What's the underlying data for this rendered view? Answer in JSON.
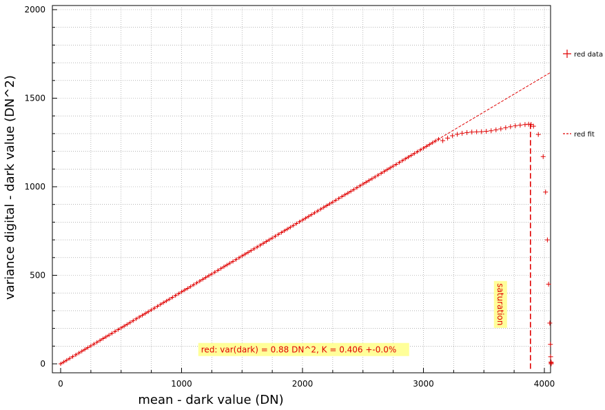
{
  "chart_data": {
    "type": "scatter",
    "title": "",
    "xlabel": "mean - dark value (DN)",
    "ylabel": "variance digital - dark value (DN^2)",
    "xlim": [
      -50,
      4100
    ],
    "ylim": [
      -20,
      2010
    ],
    "x_ticks": [
      0,
      1000,
      2000,
      3000,
      4000
    ],
    "y_ticks": [
      0,
      500,
      1000,
      1500,
      2000
    ],
    "grid": true,
    "legend_position": "right",
    "colors": {
      "series": "#e00000",
      "annotation_bg": "#ffff99",
      "grid": "#888888"
    },
    "series": [
      {
        "name": "red data",
        "marker": "+",
        "linear_region": {
          "x_start": 0,
          "x_end": 3140,
          "slope": 0.406,
          "step": 25
        },
        "points": [
          [
            3160,
            1260
          ],
          [
            3200,
            1275
          ],
          [
            3240,
            1288
          ],
          [
            3280,
            1296
          ],
          [
            3320,
            1302
          ],
          [
            3360,
            1306
          ],
          [
            3400,
            1309
          ],
          [
            3440,
            1310
          ],
          [
            3480,
            1311
          ],
          [
            3520,
            1313
          ],
          [
            3560,
            1316
          ],
          [
            3600,
            1321
          ],
          [
            3640,
            1327
          ],
          [
            3680,
            1333
          ],
          [
            3720,
            1339
          ],
          [
            3760,
            1344
          ],
          [
            3800,
            1348
          ],
          [
            3840,
            1351
          ],
          [
            3870,
            1353
          ],
          [
            3890,
            1352
          ],
          [
            3910,
            1342
          ],
          [
            3950,
            1295
          ],
          [
            3990,
            1170
          ],
          [
            4010,
            970
          ],
          [
            4025,
            700
          ],
          [
            4035,
            450
          ],
          [
            4045,
            230
          ],
          [
            4050,
            110
          ],
          [
            4052,
            40
          ],
          [
            4055,
            10
          ],
          [
            4056,
            0
          ],
          [
            4057,
            5
          ]
        ]
      },
      {
        "name": "red fit",
        "line_style": "dashed",
        "from": [
          0,
          0
        ],
        "to": [
          4050,
          1645
        ]
      }
    ],
    "annotations": [
      {
        "text": "red: var(dark) = 0.88 DN^2, K = 0.406 +-0.0%",
        "x": 2050,
        "y": 75
      },
      {
        "text": "saturation",
        "x": 3600,
        "y": 355,
        "rotated": true
      }
    ],
    "saturation_marker": {
      "x": 3885,
      "y_top": 1357
    }
  }
}
